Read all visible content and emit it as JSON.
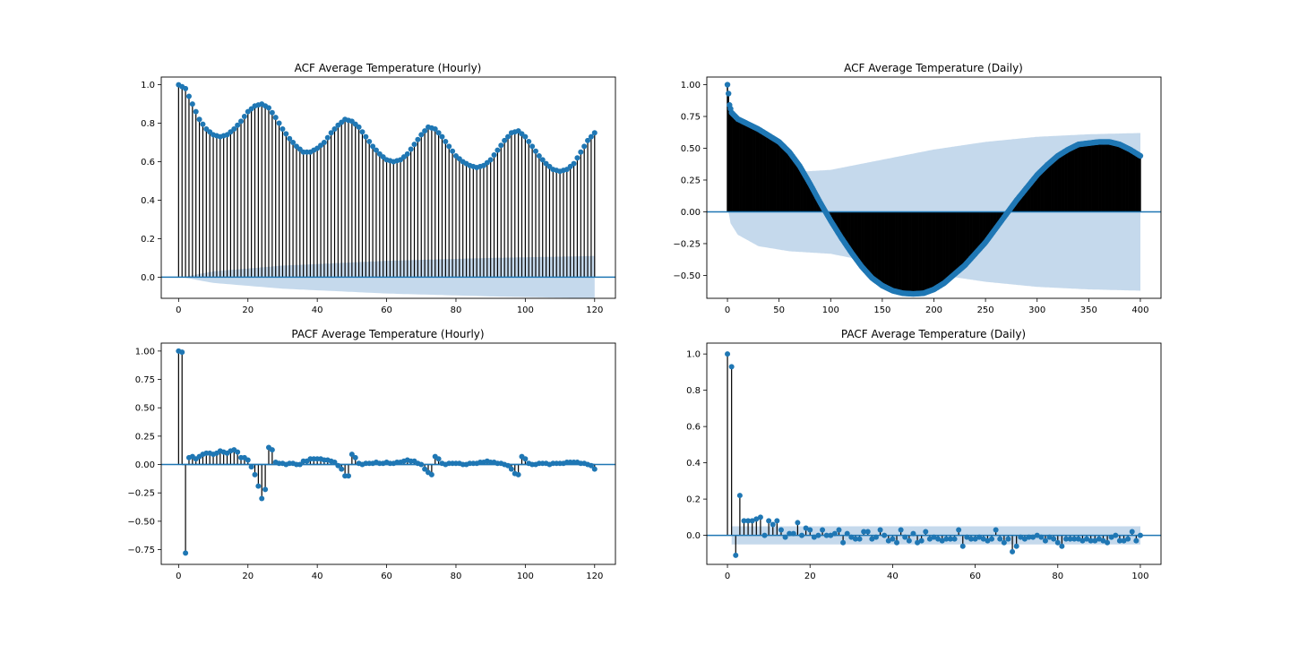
{
  "chart_data": [
    {
      "type": "stem",
      "title": "ACF Average Temperature (Hourly)",
      "xlabel": "",
      "ylabel": "",
      "xlim": [
        -5,
        126
      ],
      "ylim": [
        -0.11,
        1.04
      ],
      "xticks": [
        0,
        20,
        40,
        60,
        80,
        100,
        120
      ],
      "yticks": [
        0.0,
        0.2,
        0.4,
        0.6,
        0.8,
        1.0
      ],
      "ytick_labels": [
        "0.0",
        "0.2",
        "0.4",
        "0.6",
        "0.8",
        "1.0"
      ],
      "lags": 120,
      "keypoints": [
        [
          0,
          1.0
        ],
        [
          2,
          0.98
        ],
        [
          4,
          0.9
        ],
        [
          6,
          0.82
        ],
        [
          8,
          0.77
        ],
        [
          10,
          0.74
        ],
        [
          12,
          0.73
        ],
        [
          14,
          0.74
        ],
        [
          16,
          0.77
        ],
        [
          18,
          0.81
        ],
        [
          20,
          0.86
        ],
        [
          22,
          0.89
        ],
        [
          24,
          0.9
        ],
        [
          26,
          0.88
        ],
        [
          28,
          0.83
        ],
        [
          30,
          0.77
        ],
        [
          32,
          0.72
        ],
        [
          34,
          0.68
        ],
        [
          36,
          0.65
        ],
        [
          38,
          0.65
        ],
        [
          40,
          0.67
        ],
        [
          42,
          0.7
        ],
        [
          44,
          0.75
        ],
        [
          46,
          0.79
        ],
        [
          48,
          0.82
        ],
        [
          50,
          0.81
        ],
        [
          52,
          0.78
        ],
        [
          54,
          0.73
        ],
        [
          56,
          0.68
        ],
        [
          58,
          0.64
        ],
        [
          60,
          0.61
        ],
        [
          62,
          0.6
        ],
        [
          64,
          0.61
        ],
        [
          66,
          0.64
        ],
        [
          68,
          0.69
        ],
        [
          70,
          0.74
        ],
        [
          72,
          0.78
        ],
        [
          74,
          0.77
        ],
        [
          76,
          0.73
        ],
        [
          78,
          0.68
        ],
        [
          80,
          0.63
        ],
        [
          82,
          0.6
        ],
        [
          84,
          0.58
        ],
        [
          86,
          0.57
        ],
        [
          88,
          0.58
        ],
        [
          90,
          0.61
        ],
        [
          92,
          0.66
        ],
        [
          94,
          0.71
        ],
        [
          96,
          0.75
        ],
        [
          98,
          0.76
        ],
        [
          100,
          0.73
        ],
        [
          102,
          0.68
        ],
        [
          104,
          0.63
        ],
        [
          106,
          0.59
        ],
        [
          108,
          0.56
        ],
        [
          110,
          0.55
        ],
        [
          112,
          0.56
        ],
        [
          114,
          0.59
        ],
        [
          116,
          0.65
        ],
        [
          118,
          0.71
        ],
        [
          120,
          0.75
        ]
      ],
      "confint_keypoints": [
        [
          1,
          0.0
        ],
        [
          10,
          0.03
        ],
        [
          30,
          0.06
        ],
        [
          60,
          0.085
        ],
        [
          90,
          0.1
        ],
        [
          120,
          0.11
        ]
      ],
      "series_color": "#1f77b4",
      "stem_color": "#000000",
      "band_color": "#c5d9ec"
    },
    {
      "type": "stem",
      "title": "ACF Average Temperature (Daily)",
      "xlabel": "",
      "ylabel": "",
      "xlim": [
        -20,
        420
      ],
      "ylim": [
        -0.68,
        1.06
      ],
      "xticks": [
        0,
        50,
        100,
        150,
        200,
        250,
        300,
        350,
        400
      ],
      "yticks": [
        -0.5,
        -0.25,
        0.0,
        0.25,
        0.5,
        0.75,
        1.0
      ],
      "ytick_labels": [
        "−0.50",
        "−0.25",
        "0.00",
        "0.25",
        "0.50",
        "0.75",
        "1.00"
      ],
      "lags": 400,
      "keypoints": [
        [
          0,
          1.0
        ],
        [
          1,
          0.93
        ],
        [
          2,
          0.84
        ],
        [
          4,
          0.78
        ],
        [
          10,
          0.73
        ],
        [
          20,
          0.69
        ],
        [
          30,
          0.65
        ],
        [
          40,
          0.6
        ],
        [
          50,
          0.55
        ],
        [
          60,
          0.47
        ],
        [
          70,
          0.36
        ],
        [
          80,
          0.22
        ],
        [
          90,
          0.07
        ],
        [
          100,
          -0.07
        ],
        [
          110,
          -0.2
        ],
        [
          120,
          -0.32
        ],
        [
          130,
          -0.43
        ],
        [
          140,
          -0.52
        ],
        [
          150,
          -0.58
        ],
        [
          160,
          -0.62
        ],
        [
          170,
          -0.64
        ],
        [
          180,
          -0.645
        ],
        [
          190,
          -0.64
        ],
        [
          200,
          -0.61
        ],
        [
          210,
          -0.56
        ],
        [
          220,
          -0.49
        ],
        [
          230,
          -0.42
        ],
        [
          240,
          -0.33
        ],
        [
          250,
          -0.24
        ],
        [
          260,
          -0.13
        ],
        [
          270,
          -0.02
        ],
        [
          280,
          0.09
        ],
        [
          290,
          0.19
        ],
        [
          300,
          0.29
        ],
        [
          310,
          0.37
        ],
        [
          320,
          0.44
        ],
        [
          330,
          0.49
        ],
        [
          340,
          0.53
        ],
        [
          350,
          0.54
        ],
        [
          360,
          0.55
        ],
        [
          370,
          0.55
        ],
        [
          380,
          0.53
        ],
        [
          390,
          0.49
        ],
        [
          400,
          0.44
        ]
      ],
      "confint_keypoints": [
        [
          1,
          0.0
        ],
        [
          3,
          0.09
        ],
        [
          10,
          0.18
        ],
        [
          30,
          0.27
        ],
        [
          60,
          0.31
        ],
        [
          100,
          0.33
        ],
        [
          150,
          0.41
        ],
        [
          200,
          0.49
        ],
        [
          250,
          0.55
        ],
        [
          300,
          0.59
        ],
        [
          350,
          0.61
        ],
        [
          400,
          0.62
        ]
      ],
      "series_color": "#1f77b4",
      "stem_color": "#000000",
      "band_color": "#c5d9ec"
    },
    {
      "type": "stem",
      "title": "PACF Average Temperature (Hourly)",
      "xlabel": "",
      "ylabel": "",
      "xlim": [
        -5,
        126
      ],
      "ylim": [
        -0.88,
        1.07
      ],
      "xticks": [
        0,
        20,
        40,
        60,
        80,
        100,
        120
      ],
      "yticks": [
        -0.75,
        -0.5,
        -0.25,
        0.0,
        0.25,
        0.5,
        0.75,
        1.0
      ],
      "ytick_labels": [
        "−0.75",
        "−0.50",
        "−0.25",
        "0.00",
        "0.25",
        "0.50",
        "0.75",
        "1.00"
      ],
      "lags": 120,
      "values": [
        1.0,
        0.99,
        -0.78,
        0.06,
        0.07,
        0.05,
        0.07,
        0.09,
        0.1,
        0.1,
        0.09,
        0.1,
        0.12,
        0.11,
        0.1,
        0.12,
        0.13,
        0.11,
        0.06,
        0.06,
        0.04,
        -0.02,
        -0.09,
        -0.19,
        -0.3,
        -0.22,
        0.15,
        0.13,
        0.02,
        0.01,
        0.01,
        0.0,
        0.01,
        0.01,
        0.0,
        0.0,
        0.03,
        0.03,
        0.05,
        0.05,
        0.05,
        0.05,
        0.04,
        0.04,
        0.03,
        0.02,
        -0.01,
        -0.04,
        -0.1,
        -0.1,
        0.09,
        0.06,
        0.01,
        0.0,
        0.01,
        0.01,
        0.01,
        0.02,
        0.01,
        0.01,
        0.02,
        0.01,
        0.01,
        0.02,
        0.02,
        0.03,
        0.04,
        0.03,
        0.03,
        0.01,
        0.0,
        -0.04,
        -0.07,
        -0.09,
        0.07,
        0.05,
        0.01,
        0.0,
        0.01,
        0.01,
        0.01,
        0.01,
        0.0,
        0.0,
        0.01,
        0.01,
        0.01,
        0.02,
        0.02,
        0.03,
        0.02,
        0.02,
        0.01,
        0.01,
        0.0,
        -0.01,
        -0.04,
        -0.08,
        -0.09,
        0.07,
        0.05,
        0.01,
        0.0,
        0.0,
        0.01,
        0.01,
        0.01,
        0.0,
        0.01,
        0.01,
        0.01,
        0.01,
        0.02,
        0.02,
        0.02,
        0.02,
        0.01,
        0.01,
        0.0,
        -0.01,
        -0.04
      ],
      "confint_halfwidth": 0.01,
      "series_color": "#1f77b4",
      "stem_color": "#000000",
      "band_color": "#c5d9ec"
    },
    {
      "type": "stem",
      "title": "PACF Average Temperature (Daily)",
      "xlabel": "",
      "ylabel": "",
      "xlim": [
        -5,
        105
      ],
      "ylim": [
        -0.16,
        1.06
      ],
      "xticks": [
        0,
        20,
        40,
        60,
        80,
        100
      ],
      "yticks": [
        0.0,
        0.2,
        0.4,
        0.6,
        0.8,
        1.0
      ],
      "ytick_labels": [
        "0.0",
        "0.2",
        "0.4",
        "0.6",
        "0.8",
        "1.0"
      ],
      "lags": 100,
      "values": [
        1.0,
        0.93,
        -0.11,
        0.22,
        0.08,
        0.08,
        0.08,
        0.09,
        0.1,
        0.0,
        0.08,
        0.06,
        0.08,
        0.03,
        -0.01,
        0.01,
        0.01,
        0.07,
        0.0,
        0.04,
        0.03,
        -0.01,
        0.0,
        0.03,
        0.0,
        0.0,
        0.01,
        0.03,
        -0.04,
        0.01,
        -0.01,
        -0.02,
        -0.02,
        0.02,
        0.02,
        -0.02,
        -0.01,
        0.03,
        0.0,
        -0.03,
        -0.02,
        -0.04,
        0.03,
        -0.01,
        -0.03,
        0.01,
        -0.04,
        -0.03,
        0.02,
        -0.02,
        -0.01,
        -0.02,
        -0.03,
        -0.02,
        -0.02,
        -0.02,
        0.03,
        -0.06,
        -0.01,
        -0.02,
        -0.02,
        -0.01,
        -0.02,
        -0.03,
        -0.02,
        0.03,
        -0.02,
        -0.04,
        -0.02,
        -0.09,
        -0.06,
        -0.01,
        -0.02,
        -0.01,
        -0.01,
        0.0,
        -0.01,
        -0.03,
        -0.01,
        -0.02,
        -0.04,
        -0.06,
        -0.02,
        -0.02,
        -0.02,
        -0.02,
        -0.03,
        -0.02,
        -0.03,
        -0.03,
        -0.02,
        -0.03,
        -0.04,
        -0.01,
        0.0,
        -0.03,
        -0.03,
        -0.02,
        0.02,
        -0.03,
        0.0
      ],
      "confint_halfwidth": 0.05,
      "series_color": "#1f77b4",
      "stem_color": "#000000",
      "band_color": "#c5d9ec"
    }
  ]
}
